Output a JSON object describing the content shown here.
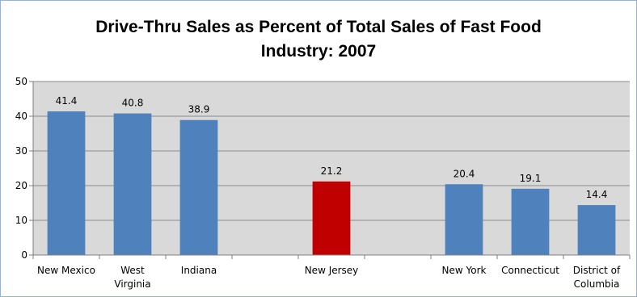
{
  "chart_data": {
    "type": "bar",
    "title_lines": [
      "Drive-Thru Sales as Percent of Total Sales of Fast Food",
      "Industry: 2007"
    ],
    "categories": [
      [
        "New Mexico"
      ],
      [
        "West",
        "Virginia"
      ],
      [
        "Indiana"
      ],
      [
        ""
      ],
      [
        "New Jersey"
      ],
      [
        ""
      ],
      [
        "New York"
      ],
      [
        "Connecticut"
      ],
      [
        "District of",
        "Columbia"
      ]
    ],
    "values": [
      41.4,
      40.8,
      38.9,
      null,
      21.2,
      null,
      20.4,
      19.1,
      14.4
    ],
    "data_labels": [
      "41.4",
      "40.8",
      "38.9",
      "",
      "21.2",
      "",
      "20.4",
      "19.1",
      "14.4"
    ],
    "bar_colors": [
      "#4f81bd",
      "#4f81bd",
      "#4f81bd",
      "#4f81bd",
      "#c00000",
      "#4f81bd",
      "#4f81bd",
      "#4f81bd",
      "#4f81bd"
    ],
    "ylim": [
      0,
      50
    ],
    "yticks": [
      0,
      10,
      20,
      30,
      40,
      50
    ],
    "grid": true,
    "legend": "none",
    "plot_background": "#d9d9d9",
    "grid_color": "#8c8c8c"
  }
}
